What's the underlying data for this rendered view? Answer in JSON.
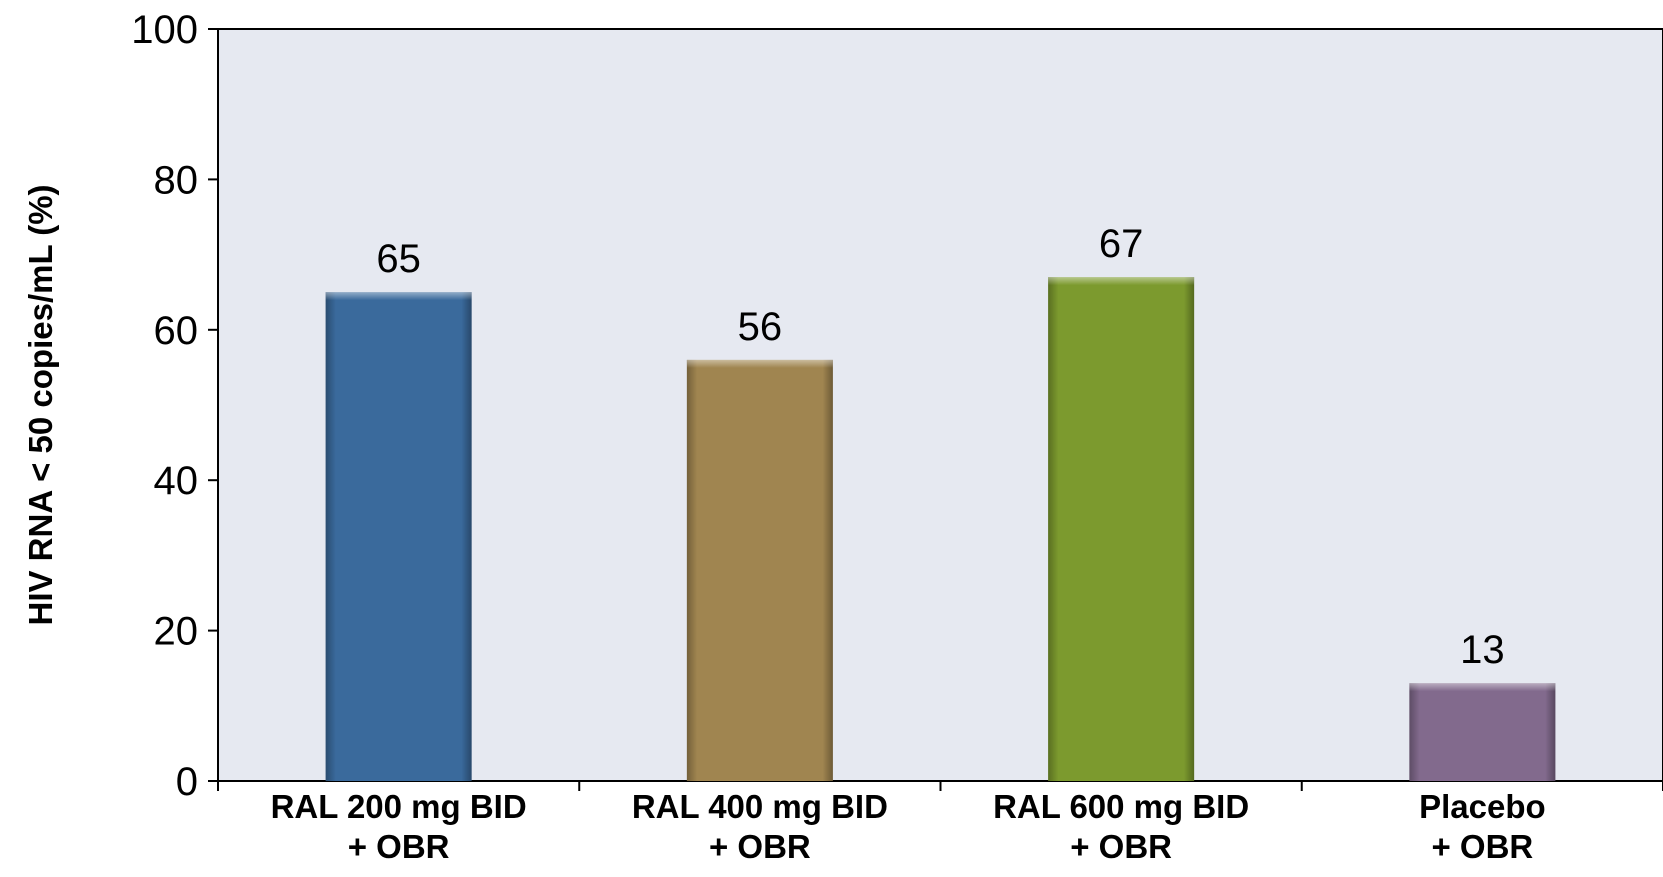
{
  "chart_data": {
    "type": "bar",
    "title": "",
    "xlabel": "",
    "ylabel": "HIV RNA < 50 copies/mL (%)",
    "ylim": [
      0,
      100
    ],
    "yticks": [
      "0",
      "20",
      "40",
      "60",
      "80",
      "100"
    ],
    "categories": [
      {
        "line1": "RAL 200 mg BID",
        "line2": "+ OBR"
      },
      {
        "line1": "RAL 400 mg BID",
        "line2": "+ OBR"
      },
      {
        "line1": "RAL 600 mg BID",
        "line2": "+ OBR"
      },
      {
        "line1": "Placebo",
        "line2": "+ OBR"
      }
    ],
    "values": [
      65,
      56,
      67,
      13
    ],
    "bar_colors": [
      "#3A6A9C",
      "#A08550",
      "#7C9A2E",
      "#826A8D"
    ],
    "plot_background": "#E6E9F1",
    "grid": false,
    "legend": "none"
  }
}
